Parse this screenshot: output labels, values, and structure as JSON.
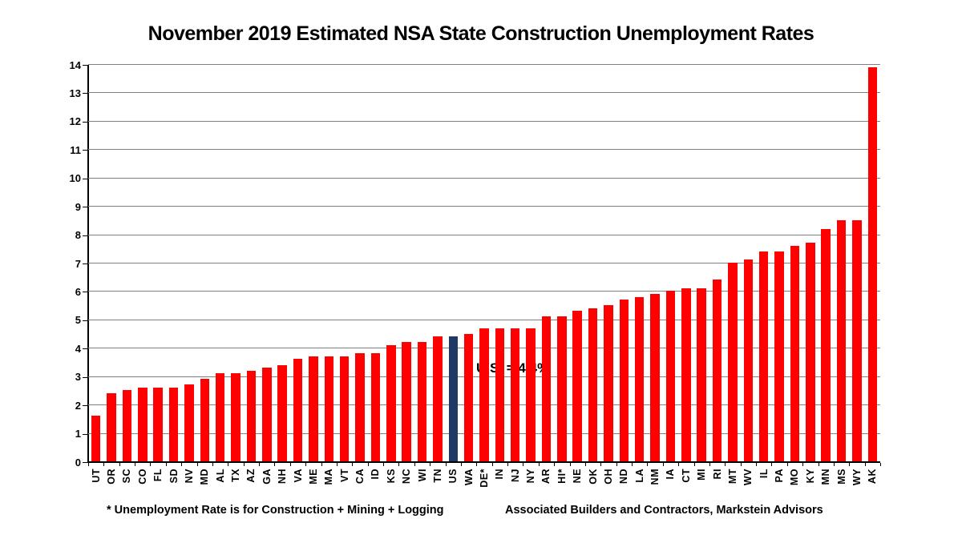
{
  "chart_data": {
    "type": "bar",
    "title": "November 2019 Estimated NSA State Construction Unemployment Rates",
    "categories": [
      "UT",
      "OR",
      "SC",
      "CO",
      "FL",
      "SD",
      "NV",
      "MD",
      "AL",
      "TX",
      "AZ",
      "GA",
      "NH",
      "VA",
      "ME",
      "MA",
      "VT",
      "CA",
      "ID",
      "KS",
      "NC",
      "WI",
      "TN",
      "US",
      "WA",
      "DE*",
      "IN",
      "NJ",
      "NY",
      "AR",
      "HI*",
      "NE",
      "OK",
      "OH",
      "ND",
      "LA",
      "NM",
      "IA",
      "CT",
      "MI",
      "RI",
      "MT",
      "WV",
      "IL",
      "PA",
      "MO",
      "KY",
      "MN",
      "MS",
      "WY",
      "AK"
    ],
    "values": [
      1.6,
      2.4,
      2.5,
      2.6,
      2.6,
      2.6,
      2.7,
      2.9,
      3.1,
      3.1,
      3.2,
      3.3,
      3.4,
      3.6,
      3.7,
      3.7,
      3.7,
      3.8,
      3.8,
      4.1,
      4.2,
      4.2,
      4.4,
      4.4,
      4.5,
      4.7,
      4.7,
      4.7,
      4.7,
      5.1,
      5.1,
      5.3,
      5.4,
      5.5,
      5.7,
      5.8,
      5.9,
      6.0,
      6.1,
      6.1,
      6.4,
      7.0,
      7.1,
      7.4,
      7.4,
      7.6,
      7.7,
      8.2,
      8.5,
      8.5,
      13.9
    ],
    "highlight_category": "US",
    "annotation": {
      "text": "U.S. = 4.4%",
      "target": "US"
    },
    "xlabel": "",
    "ylabel": "",
    "ylim": [
      0,
      14
    ],
    "ytick_step": 1,
    "grid": true,
    "legend": "none",
    "colors": {
      "bar": "#FF0000",
      "highlight_bar": "#1F3864",
      "gridline": "#808080",
      "axis": "#000000",
      "text": "#000000"
    }
  },
  "footnotes": {
    "left": "* Unemployment Rate is for Construction + Mining + Logging",
    "right": "Associated Builders and Contractors, Markstein Advisors"
  }
}
